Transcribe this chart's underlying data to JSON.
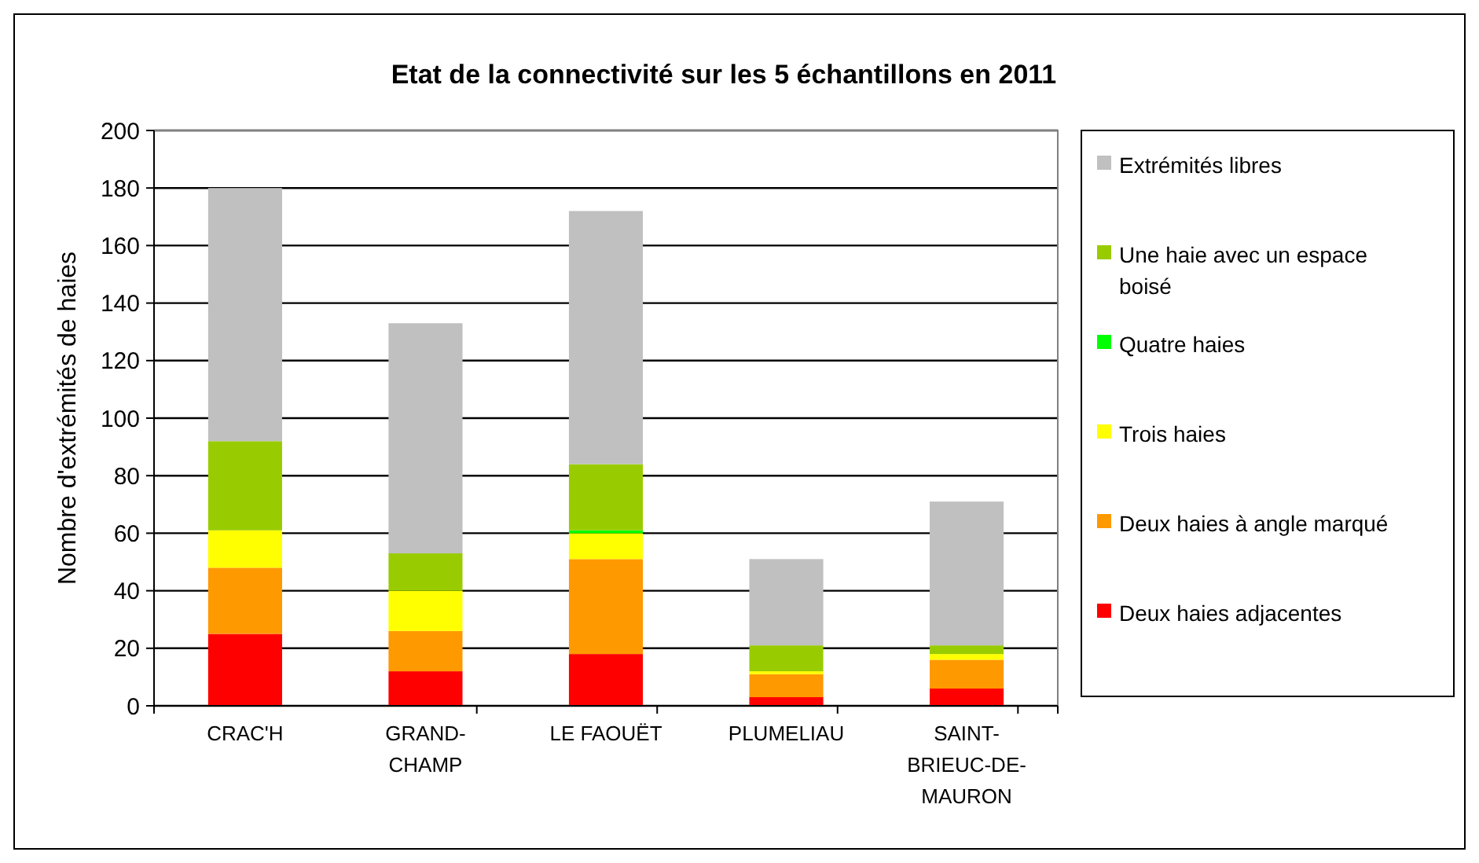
{
  "chart_data": {
    "type": "bar",
    "title": "Etat de la connectivité sur les 5 échantillons en 2011",
    "ylabel": "Nombre d'extrémités de haies",
    "categories": [
      "CRAC'H",
      "GRAND-CHAMP",
      "LE FAOUËT",
      "PLUMELIAU",
      "SAINT-BRIEUC-DE-MAURON"
    ],
    "stacked": true,
    "series": [
      {
        "name": "Deux haies adjacentes",
        "color": "#ff0000",
        "values": [
          25,
          12,
          18,
          3,
          6
        ]
      },
      {
        "name": "Deux haies à angle marqué",
        "color": "#ff9900",
        "values": [
          23,
          14,
          33,
          8,
          10
        ]
      },
      {
        "name": "Trois haies",
        "color": "#ffff00",
        "values": [
          13,
          14,
          9,
          1,
          2
        ]
      },
      {
        "name": "Quatre haies",
        "color": "#00ff00",
        "values": [
          0,
          0,
          1,
          0,
          0
        ]
      },
      {
        "name": "Une haie avec un espace boisé",
        "color": "#99cc00",
        "values": [
          31,
          13,
          23,
          9,
          3
        ]
      },
      {
        "name": "Extrémités libres",
        "color": "#c0c0c0",
        "values": [
          88,
          80,
          88,
          30,
          50
        ]
      }
    ],
    "ylim": [
      0,
      200
    ],
    "yticks": [
      0,
      20,
      40,
      60,
      80,
      100,
      120,
      140,
      160,
      180,
      200
    ],
    "grid": "y",
    "legend": "right"
  }
}
